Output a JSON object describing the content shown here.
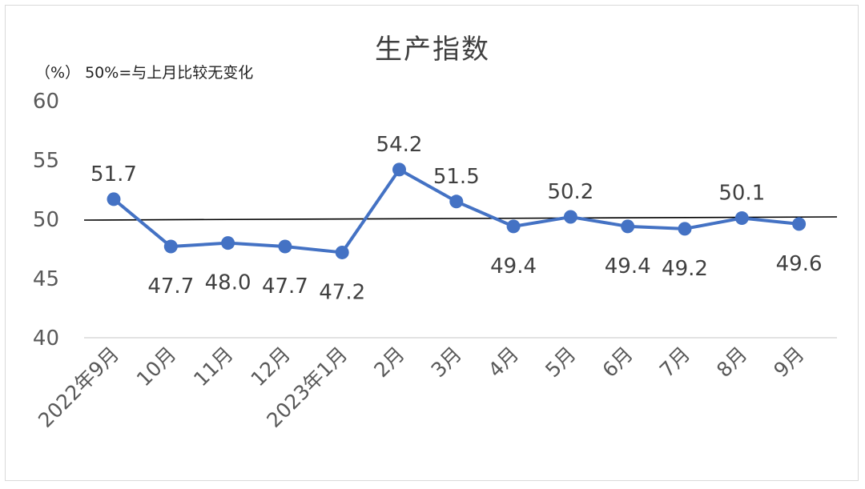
{
  "chart_data": {
    "type": "line",
    "title": "生产指数",
    "unit_note": "（%）  50%=与上月比较无变化",
    "categories": [
      "2022年9月",
      "10月",
      "11月",
      "12月",
      "2023年1月",
      "2月",
      "3月",
      "4月",
      "5月",
      "6月",
      "7月",
      "8月",
      "9月"
    ],
    "series": [
      {
        "values": [
          51.7,
          47.7,
          48.0,
          47.7,
          47.2,
          54.2,
          51.5,
          49.4,
          50.2,
          49.4,
          49.2,
          50.1,
          49.6
        ],
        "labels": [
          "51.7",
          "47.7",
          "48.0",
          "47.7",
          "47.2",
          "54.2",
          "51.5",
          "49.4",
          "50.2",
          "49.4",
          "49.2",
          "50.1",
          "49.6"
        ],
        "label_position": [
          "above",
          "below",
          "below",
          "below",
          "below",
          "above",
          "above",
          "below",
          "above",
          "below",
          "below",
          "above",
          "below"
        ],
        "color": "#4472c4"
      }
    ],
    "ylim": [
      40,
      60
    ],
    "yticks": [
      40,
      45,
      50,
      55,
      60
    ],
    "reference_line": {
      "value": 50,
      "color": "#000000"
    },
    "grid": false,
    "legend": "none"
  }
}
